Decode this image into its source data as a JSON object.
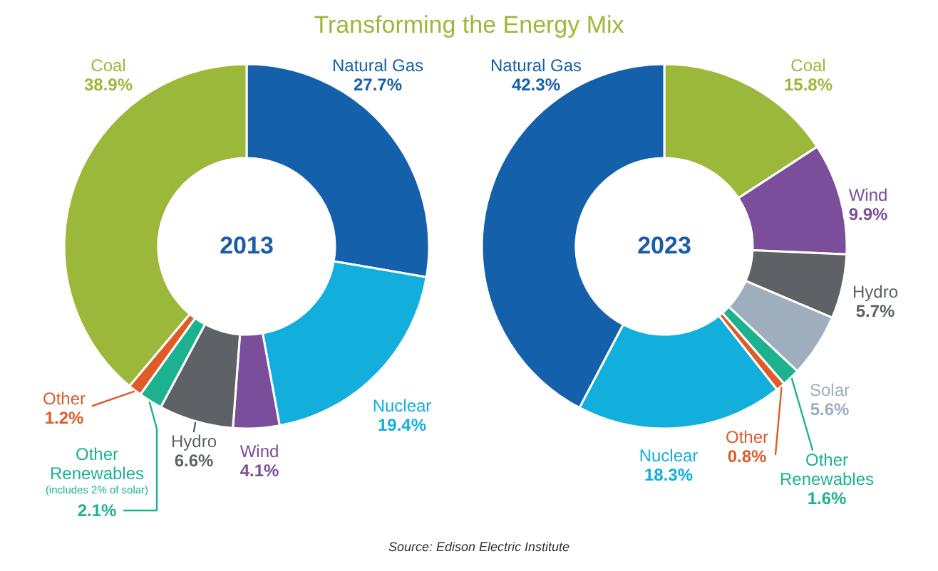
{
  "chart_data": [
    {
      "type": "other",
      "title": "Transforming the Energy Mix",
      "annotations": [
        "Source: Edison Electric Institute"
      ]
    },
    {
      "type": "donut",
      "title": "2013",
      "categories": [
        "Natural Gas",
        "Nuclear",
        "Wind",
        "Hydro",
        "Other Renewables",
        "Other",
        "Coal"
      ],
      "values": [
        27.7,
        19.4,
        4.1,
        6.6,
        2.1,
        1.2,
        38.9
      ],
      "colors": [
        "#1560aa",
        "#12aedc",
        "#7b4e9c",
        "#5e6266",
        "#1db28f",
        "#e05b26",
        "#9cb83b"
      ],
      "value_labels": [
        "27.7%",
        "19.4%",
        "4.1%",
        "6.6%",
        "2.1%",
        "1.2%",
        "38.9%"
      ],
      "annotations": [
        {
          "text": "(includes 2% of solar)",
          "x": "Other Renewables"
        }
      ]
    },
    {
      "type": "donut",
      "title": "2023",
      "categories": [
        "Coal",
        "Wind",
        "Hydro",
        "Solar",
        "Other Renewables",
        "Other",
        "Nuclear",
        "Natural Gas"
      ],
      "values": [
        15.8,
        9.9,
        5.7,
        5.6,
        1.6,
        0.8,
        18.3,
        42.3
      ],
      "colors": [
        "#9cb83b",
        "#7b4e9c",
        "#5e6266",
        "#9faebd",
        "#1db28f",
        "#e05b26",
        "#12aedc",
        "#1560aa"
      ],
      "value_labels": [
        "15.8%",
        "9.9%",
        "5.7%",
        "5.6%",
        "1.6%",
        "0.8%",
        "18.3%",
        "42.3%"
      ]
    }
  ]
}
